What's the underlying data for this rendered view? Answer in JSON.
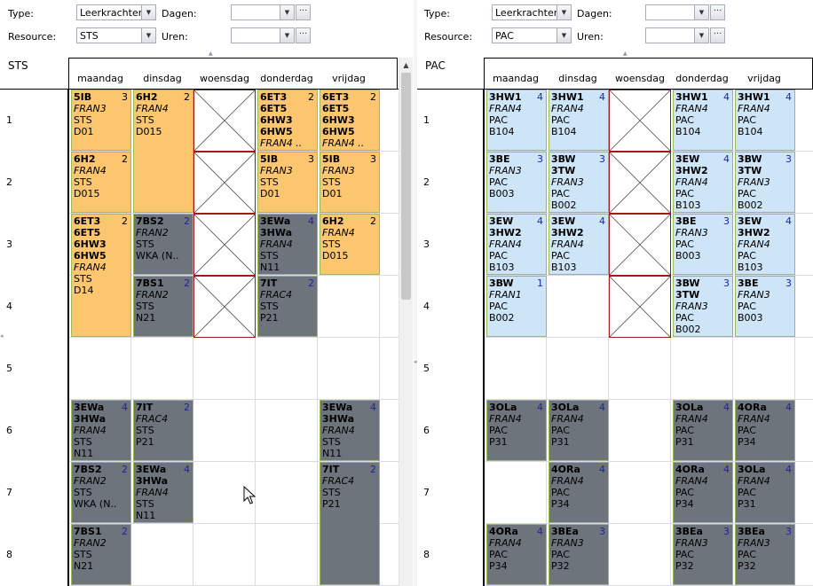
{
  "left": {
    "type_label": "Type:",
    "type_value": "Leerkrachten",
    "resource_label": "Resource:",
    "resource_value": "STS",
    "dagen_label": "Dagen:",
    "dagen_value": "",
    "uren_label": "Uren:",
    "uren_value": "",
    "resource_name": "STS",
    "days": [
      "maandag",
      "dinsdag",
      "woensdag",
      "donderdag",
      "vrijdag"
    ],
    "periods": [
      "1",
      "2",
      "3",
      "4",
      "5",
      "6",
      "7",
      "8"
    ],
    "lessons": [
      {
        "day": 0,
        "p": 0,
        "span": 1,
        "color": "orange",
        "cls": "5IB",
        "cnt": "3",
        "lines": [
          {
            "t": "FRAN3",
            "i": true
          },
          {
            "t": "STS"
          },
          {
            "t": "D01"
          }
        ]
      },
      {
        "day": 1,
        "p": 0,
        "span": 2,
        "color": "orange",
        "cls": "6H2",
        "cnt": "2",
        "lines": [
          {
            "t": "FRAN4",
            "i": true
          },
          {
            "t": "STS"
          },
          {
            "t": "D015"
          }
        ]
      },
      {
        "day": 3,
        "p": 0,
        "span": 1,
        "color": "orange",
        "cls": "6ET3",
        "cnt": "2",
        "lines": [
          {
            "t": "6ET5",
            "b": true
          },
          {
            "t": "6HW3",
            "b": true
          },
          {
            "t": "6HW5",
            "b": true
          },
          {
            "t": "FRAN4  ..",
            "i": true
          }
        ]
      },
      {
        "day": 4,
        "p": 0,
        "span": 1,
        "color": "orange",
        "cls": "6ET3",
        "cnt": "2",
        "lines": [
          {
            "t": "6ET5",
            "b": true
          },
          {
            "t": "6HW3",
            "b": true
          },
          {
            "t": "6HW5",
            "b": true
          },
          {
            "t": "FRAN4  ..",
            "i": true
          }
        ]
      },
      {
        "day": 0,
        "p": 1,
        "span": 1,
        "color": "orange",
        "cls": "6H2",
        "cnt": "2",
        "lines": [
          {
            "t": "FRAN4",
            "i": true
          },
          {
            "t": "STS"
          },
          {
            "t": "D015"
          }
        ]
      },
      {
        "day": 3,
        "p": 1,
        "span": 1,
        "color": "orange",
        "cls": "5IB",
        "cnt": "3",
        "lines": [
          {
            "t": "FRAN3",
            "i": true
          },
          {
            "t": "STS"
          },
          {
            "t": "D01"
          }
        ]
      },
      {
        "day": 4,
        "p": 1,
        "span": 1,
        "color": "orange",
        "cls": "5IB",
        "cnt": "3",
        "lines": [
          {
            "t": "FRAN3",
            "i": true
          },
          {
            "t": "STS"
          },
          {
            "t": "D01"
          }
        ]
      },
      {
        "day": 0,
        "p": 2,
        "span": 2,
        "color": "orange",
        "cls": "6ET3",
        "cnt": "2",
        "lines": [
          {
            "t": "6ET5",
            "b": true
          },
          {
            "t": "6HW3",
            "b": true
          },
          {
            "t": "6HW5",
            "b": true
          },
          {
            "t": "FRAN4",
            "i": true
          },
          {
            "t": "STS"
          },
          {
            "t": "D14"
          }
        ]
      },
      {
        "day": 1,
        "p": 2,
        "span": 1,
        "color": "grey",
        "cls": "7BS2",
        "cnt": "2",
        "lines": [
          {
            "t": "FRAN2",
            "i": true
          },
          {
            "t": "STS"
          },
          {
            "t": "WKA (N.."
          }
        ]
      },
      {
        "day": 3,
        "p": 2,
        "span": 1,
        "color": "grey",
        "cls": "3EWa",
        "cnt": "4",
        "lines": [
          {
            "t": "3HWa",
            "b": true
          },
          {
            "t": "FRAN4",
            "i": true
          },
          {
            "t": "STS"
          },
          {
            "t": "N11"
          }
        ]
      },
      {
        "day": 4,
        "p": 2,
        "span": 1,
        "color": "orange",
        "cls": "6H2",
        "cnt": "2",
        "lines": [
          {
            "t": "FRAN4",
            "i": true
          },
          {
            "t": "STS"
          },
          {
            "t": "D015"
          }
        ]
      },
      {
        "day": 1,
        "p": 3,
        "span": 1,
        "color": "grey",
        "cls": "7BS1",
        "cnt": "2",
        "lines": [
          {
            "t": "FRAN2",
            "i": true
          },
          {
            "t": "STS"
          },
          {
            "t": "N21"
          }
        ]
      },
      {
        "day": 3,
        "p": 3,
        "span": 1,
        "color": "grey",
        "cls": "7IT",
        "cnt": "2",
        "lines": [
          {
            "t": "FRAC4",
            "i": true
          },
          {
            "t": "STS"
          },
          {
            "t": "P21"
          }
        ]
      },
      {
        "day": 0,
        "p": 5,
        "span": 1,
        "color": "grey",
        "cls": "3EWa",
        "cnt": "4",
        "lines": [
          {
            "t": "3HWa",
            "b": true
          },
          {
            "t": "FRAN4",
            "i": true
          },
          {
            "t": "STS"
          },
          {
            "t": "N11"
          }
        ]
      },
      {
        "day": 1,
        "p": 5,
        "span": 1,
        "color": "grey",
        "cls": "7IT",
        "cnt": "2",
        "lines": [
          {
            "t": "FRAC4",
            "i": true
          },
          {
            "t": "STS"
          },
          {
            "t": "P21"
          }
        ]
      },
      {
        "day": 4,
        "p": 5,
        "span": 1,
        "color": "grey",
        "cls": "3EWa",
        "cnt": "4",
        "lines": [
          {
            "t": "3HWa",
            "b": true
          },
          {
            "t": "FRAN4",
            "i": true
          },
          {
            "t": "STS"
          },
          {
            "t": "N11"
          }
        ]
      },
      {
        "day": 0,
        "p": 6,
        "span": 1,
        "color": "grey",
        "cls": "7BS2",
        "cnt": "2",
        "lines": [
          {
            "t": "FRAN2",
            "i": true
          },
          {
            "t": "STS"
          },
          {
            "t": "WKA (N.."
          }
        ]
      },
      {
        "day": 1,
        "p": 6,
        "span": 1,
        "color": "grey",
        "cls": "3EWa",
        "cnt": "4",
        "lines": [
          {
            "t": "3HWa",
            "b": true
          },
          {
            "t": "FRAN4",
            "i": true
          },
          {
            "t": "STS"
          },
          {
            "t": "N11"
          }
        ]
      },
      {
        "day": 4,
        "p": 6,
        "span": 2,
        "color": "grey",
        "cls": "7IT",
        "cnt": "2",
        "lines": [
          {
            "t": "FRAC4",
            "i": true
          },
          {
            "t": "STS"
          },
          {
            "t": "P21"
          }
        ]
      },
      {
        "day": 0,
        "p": 7,
        "span": 1,
        "color": "grey",
        "cls": "7BS1",
        "cnt": "2",
        "lines": [
          {
            "t": "FRAN2",
            "i": true
          },
          {
            "t": "STS"
          },
          {
            "t": "N21"
          }
        ]
      }
    ],
    "blocked": [
      {
        "day": 2,
        "p": 0
      },
      {
        "day": 2,
        "p": 1
      },
      {
        "day": 2,
        "p": 2
      },
      {
        "day": 2,
        "p": 3
      }
    ]
  },
  "right": {
    "type_label": "Type:",
    "type_value": "Leerkrachten",
    "resource_label": "Resource:",
    "resource_value": "PAC",
    "dagen_label": "Dagen:",
    "dagen_value": "",
    "uren_label": "Uren:",
    "uren_value": "",
    "resource_name": "PAC",
    "days": [
      "maandag",
      "dinsdag",
      "woensdag",
      "donderdag",
      "vrijdag"
    ],
    "periods": [
      "1",
      "2",
      "3",
      "4",
      "5",
      "6",
      "7",
      "8"
    ],
    "lessons": [
      {
        "day": 0,
        "p": 0,
        "span": 1,
        "color": "blue",
        "cls": "3HW1",
        "cnt": "4",
        "lines": [
          {
            "t": "FRAN4",
            "i": true
          },
          {
            "t": "PAC"
          },
          {
            "t": "B104"
          }
        ]
      },
      {
        "day": 1,
        "p": 0,
        "span": 1,
        "color": "blue",
        "cls": "3HW1",
        "cnt": "4",
        "lines": [
          {
            "t": "FRAN4",
            "i": true
          },
          {
            "t": "PAC"
          },
          {
            "t": "B104"
          }
        ]
      },
      {
        "day": 3,
        "p": 0,
        "span": 1,
        "color": "blue",
        "cls": "3HW1",
        "cnt": "4",
        "lines": [
          {
            "t": "FRAN4",
            "i": true
          },
          {
            "t": "PAC"
          },
          {
            "t": "B104"
          }
        ]
      },
      {
        "day": 4,
        "p": 0,
        "span": 1,
        "color": "blue",
        "cls": "3HW1",
        "cnt": "4",
        "lines": [
          {
            "t": "FRAN4",
            "i": true
          },
          {
            "t": "PAC"
          },
          {
            "t": "B104"
          }
        ]
      },
      {
        "day": 0,
        "p": 1,
        "span": 1,
        "color": "blue",
        "cls": "3BE",
        "cnt": "3",
        "lines": [
          {
            "t": "FRAN3",
            "i": true
          },
          {
            "t": "PAC"
          },
          {
            "t": "B003"
          }
        ]
      },
      {
        "day": 1,
        "p": 1,
        "span": 1,
        "color": "blue",
        "cls": "3BW",
        "cnt": "3",
        "lines": [
          {
            "t": "3TW",
            "b": true
          },
          {
            "t": "FRAN3",
            "i": true
          },
          {
            "t": "PAC"
          },
          {
            "t": "B002"
          }
        ]
      },
      {
        "day": 3,
        "p": 1,
        "span": 1,
        "color": "blue",
        "cls": "3EW",
        "cnt": "4",
        "lines": [
          {
            "t": "3HW2",
            "b": true
          },
          {
            "t": "FRAN4",
            "i": true
          },
          {
            "t": "PAC"
          },
          {
            "t": "B103"
          }
        ]
      },
      {
        "day": 4,
        "p": 1,
        "span": 1,
        "color": "blue",
        "cls": "3BW",
        "cnt": "3",
        "lines": [
          {
            "t": "3TW",
            "b": true
          },
          {
            "t": "FRAN3",
            "i": true
          },
          {
            "t": "PAC"
          },
          {
            "t": "B002"
          }
        ]
      },
      {
        "day": 0,
        "p": 2,
        "span": 1,
        "color": "blue",
        "cls": "3EW",
        "cnt": "4",
        "lines": [
          {
            "t": "3HW2",
            "b": true
          },
          {
            "t": "FRAN4",
            "i": true
          },
          {
            "t": "PAC"
          },
          {
            "t": "B103"
          }
        ]
      },
      {
        "day": 1,
        "p": 2,
        "span": 1,
        "color": "blue",
        "cls": "3EW",
        "cnt": "4",
        "lines": [
          {
            "t": "3HW2",
            "b": true
          },
          {
            "t": "FRAN4",
            "i": true
          },
          {
            "t": "PAC"
          },
          {
            "t": "B103"
          }
        ]
      },
      {
        "day": 3,
        "p": 2,
        "span": 1,
        "color": "blue",
        "cls": "3BE",
        "cnt": "3",
        "lines": [
          {
            "t": "FRAN3",
            "i": true
          },
          {
            "t": "PAC"
          },
          {
            "t": "B003"
          }
        ]
      },
      {
        "day": 4,
        "p": 2,
        "span": 1,
        "color": "blue",
        "cls": "3EW",
        "cnt": "4",
        "lines": [
          {
            "t": "3HW2",
            "b": true
          },
          {
            "t": "FRAN4",
            "i": true
          },
          {
            "t": "PAC"
          },
          {
            "t": "B103"
          }
        ]
      },
      {
        "day": 0,
        "p": 3,
        "span": 1,
        "color": "blue",
        "cls": "3BW",
        "cnt": "1",
        "lines": [
          {
            "t": "FRAN1",
            "i": true
          },
          {
            "t": "PAC"
          },
          {
            "t": "B002"
          }
        ]
      },
      {
        "day": 3,
        "p": 3,
        "span": 1,
        "color": "blue",
        "cls": "3BW",
        "cnt": "3",
        "lines": [
          {
            "t": "3TW",
            "b": true
          },
          {
            "t": "FRAN3",
            "i": true
          },
          {
            "t": "PAC"
          },
          {
            "t": "B002"
          }
        ]
      },
      {
        "day": 4,
        "p": 3,
        "span": 1,
        "color": "blue",
        "cls": "3BE",
        "cnt": "3",
        "lines": [
          {
            "t": "FRAN3",
            "i": true
          },
          {
            "t": "PAC"
          },
          {
            "t": "B003"
          }
        ]
      },
      {
        "day": 0,
        "p": 5,
        "span": 1,
        "color": "grey",
        "cls": "3OLa",
        "cnt": "4",
        "lines": [
          {
            "t": "FRAN4",
            "i": true
          },
          {
            "t": "PAC"
          },
          {
            "t": "P31"
          }
        ]
      },
      {
        "day": 1,
        "p": 5,
        "span": 1,
        "color": "grey",
        "cls": "3OLa",
        "cnt": "4",
        "lines": [
          {
            "t": "FRAN4",
            "i": true
          },
          {
            "t": "PAC"
          },
          {
            "t": "P31"
          }
        ]
      },
      {
        "day": 3,
        "p": 5,
        "span": 1,
        "color": "grey",
        "cls": "3OLa",
        "cnt": "4",
        "lines": [
          {
            "t": "FRAN4",
            "i": true
          },
          {
            "t": "PAC"
          },
          {
            "t": "P31"
          }
        ]
      },
      {
        "day": 4,
        "p": 5,
        "span": 1,
        "color": "grey",
        "cls": "4ORa",
        "cnt": "4",
        "lines": [
          {
            "t": "FRAN4",
            "i": true
          },
          {
            "t": "PAC"
          },
          {
            "t": "P34"
          }
        ]
      },
      {
        "day": 1,
        "p": 6,
        "span": 1,
        "color": "grey",
        "cls": "4ORa",
        "cnt": "4",
        "lines": [
          {
            "t": "FRAN4",
            "i": true
          },
          {
            "t": "PAC"
          },
          {
            "t": "P34"
          }
        ]
      },
      {
        "day": 3,
        "p": 6,
        "span": 1,
        "color": "grey",
        "cls": "4ORa",
        "cnt": "4",
        "lines": [
          {
            "t": "FRAN4",
            "i": true
          },
          {
            "t": "PAC"
          },
          {
            "t": "P34"
          }
        ]
      },
      {
        "day": 4,
        "p": 6,
        "span": 1,
        "color": "grey",
        "cls": "3OLa",
        "cnt": "4",
        "lines": [
          {
            "t": "FRAN4",
            "i": true
          },
          {
            "t": "PAC"
          },
          {
            "t": "P31"
          }
        ]
      },
      {
        "day": 0,
        "p": 7,
        "span": 1,
        "color": "grey",
        "cls": "4ORa",
        "cnt": "4",
        "lines": [
          {
            "t": "FRAN4",
            "i": true
          },
          {
            "t": "PAC"
          },
          {
            "t": "P34"
          }
        ]
      },
      {
        "day": 1,
        "p": 7,
        "span": 1,
        "color": "grey",
        "cls": "3BEa",
        "cnt": "3",
        "lines": [
          {
            "t": "FRAN3",
            "i": true
          },
          {
            "t": "PAC"
          },
          {
            "t": "P32"
          }
        ]
      },
      {
        "day": 3,
        "p": 7,
        "span": 1,
        "color": "grey",
        "cls": "3BEa",
        "cnt": "3",
        "lines": [
          {
            "t": "FRAN3",
            "i": true
          },
          {
            "t": "PAC"
          },
          {
            "t": "P32"
          }
        ]
      },
      {
        "day": 4,
        "p": 7,
        "span": 1,
        "color": "grey",
        "cls": "3BEa",
        "cnt": "3",
        "lines": [
          {
            "t": "FRAN3",
            "i": true
          },
          {
            "t": "PAC"
          },
          {
            "t": "P32"
          }
        ]
      }
    ],
    "blocked": [
      {
        "day": 2,
        "p": 0
      },
      {
        "day": 2,
        "p": 1
      },
      {
        "day": 2,
        "p": 2
      },
      {
        "day": 2,
        "p": 3
      }
    ]
  },
  "icons": {
    "dropdown": "chevron-down-icon",
    "ellipsis": "ellipsis-icon",
    "scroll_up": "arrow-up-icon",
    "cursor": "mouse-pointer-icon"
  }
}
